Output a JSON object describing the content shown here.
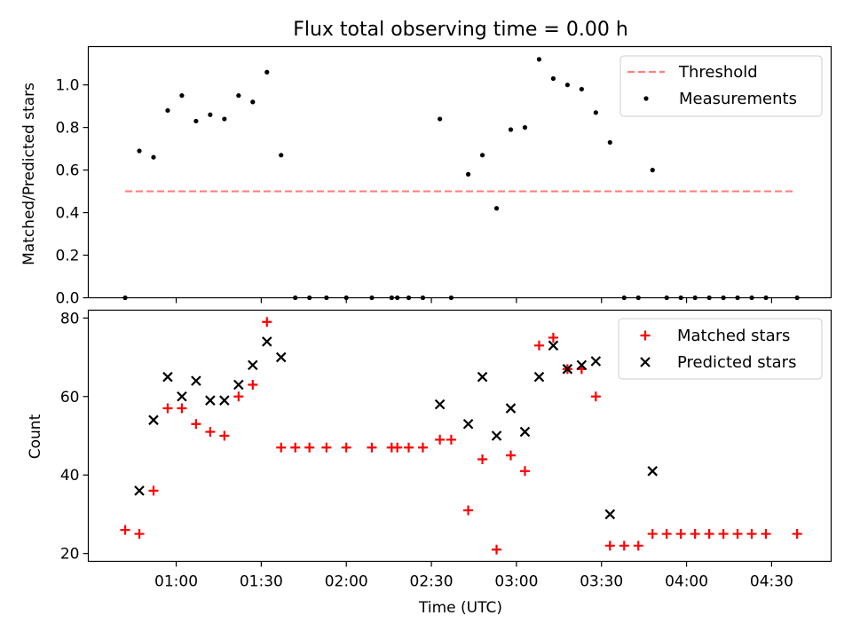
{
  "chart_data": [
    {
      "type": "scatter",
      "title": "Flux total observing time = 0.00 h",
      "xlabel": "",
      "ylabel": "Matched/Predicted stars",
      "xlim": [
        "00:29",
        "04:51"
      ],
      "ylim": [
        0,
        1.18
      ],
      "yticks": [
        "0.0",
        "0.2",
        "0.4",
        "0.6",
        "0.8",
        "1.0"
      ],
      "grid": false,
      "legend": "top-right",
      "threshold": {
        "name": "Threshold",
        "y": 0.5,
        "x_from": "00:42",
        "x_to": "04:38",
        "color": "#ff7f7f",
        "style": "dashed"
      },
      "series": [
        {
          "name": "Measurements",
          "color": "#000000",
          "marker": "dot",
          "points": [
            [
              "00:42",
              0.0
            ],
            [
              "00:47",
              0.69
            ],
            [
              "00:52",
              0.66
            ],
            [
              "00:57",
              0.88
            ],
            [
              "01:02",
              0.95
            ],
            [
              "01:07",
              0.83
            ],
            [
              "01:12",
              0.86
            ],
            [
              "01:17",
              0.84
            ],
            [
              "01:22",
              0.95
            ],
            [
              "01:27",
              0.92
            ],
            [
              "01:32",
              1.06
            ],
            [
              "01:37",
              0.67
            ],
            [
              "01:42",
              0.0
            ],
            [
              "01:47",
              0.0
            ],
            [
              "01:53",
              0.0
            ],
            [
              "02:00",
              0.0
            ],
            [
              "02:09",
              0.0
            ],
            [
              "02:16",
              0.0
            ],
            [
              "02:18",
              0.0
            ],
            [
              "02:22",
              0.0
            ],
            [
              "02:27",
              0.0
            ],
            [
              "02:33",
              0.84
            ],
            [
              "02:37",
              0.0
            ],
            [
              "02:43",
              0.58
            ],
            [
              "02:48",
              0.67
            ],
            [
              "02:53",
              0.42
            ],
            [
              "02:58",
              0.79
            ],
            [
              "03:03",
              0.8
            ],
            [
              "03:08",
              1.12
            ],
            [
              "03:13",
              1.03
            ],
            [
              "03:18",
              1.0
            ],
            [
              "03:23",
              0.98
            ],
            [
              "03:28",
              0.87
            ],
            [
              "03:33",
              0.73
            ],
            [
              "03:38",
              0.0
            ],
            [
              "03:43",
              0.0
            ],
            [
              "03:48",
              0.6
            ],
            [
              "03:53",
              0.0
            ],
            [
              "03:58",
              0.0
            ],
            [
              "04:03",
              0.0
            ],
            [
              "04:08",
              0.0
            ],
            [
              "04:13",
              0.0
            ],
            [
              "04:18",
              0.0
            ],
            [
              "04:23",
              0.0
            ],
            [
              "04:28",
              0.0
            ],
            [
              "04:39",
              0.0
            ]
          ]
        }
      ]
    },
    {
      "type": "scatter",
      "title": "",
      "xlabel": "Time (UTC)",
      "ylabel": "Count",
      "xlim": [
        "00:29",
        "04:51"
      ],
      "ylim": [
        18,
        82
      ],
      "xticks": [
        "01:00",
        "01:30",
        "02:00",
        "02:30",
        "03:00",
        "03:30",
        "04:00",
        "04:30"
      ],
      "yticks": [
        "20",
        "40",
        "60",
        "80"
      ],
      "grid": false,
      "legend": "top-right",
      "series": [
        {
          "name": "Matched stars",
          "color": "#ff0000",
          "marker": "plus",
          "points": [
            [
              "00:42",
              26
            ],
            [
              "00:47",
              25
            ],
            [
              "00:52",
              36
            ],
            [
              "00:57",
              57
            ],
            [
              "01:02",
              57
            ],
            [
              "01:07",
              53
            ],
            [
              "01:12",
              51
            ],
            [
              "01:17",
              50
            ],
            [
              "01:22",
              60
            ],
            [
              "01:27",
              63
            ],
            [
              "01:32",
              79
            ],
            [
              "01:37",
              47
            ],
            [
              "01:42",
              47
            ],
            [
              "01:47",
              47
            ],
            [
              "01:53",
              47
            ],
            [
              "02:00",
              47
            ],
            [
              "02:09",
              47
            ],
            [
              "02:16",
              47
            ],
            [
              "02:18",
              47
            ],
            [
              "02:22",
              47
            ],
            [
              "02:27",
              47
            ],
            [
              "02:33",
              49
            ],
            [
              "02:37",
              49
            ],
            [
              "02:43",
              31
            ],
            [
              "02:48",
              44
            ],
            [
              "02:53",
              21
            ],
            [
              "02:58",
              45
            ],
            [
              "03:03",
              41
            ],
            [
              "03:08",
              73
            ],
            [
              "03:13",
              75
            ],
            [
              "03:18",
              67
            ],
            [
              "03:23",
              67
            ],
            [
              "03:28",
              60
            ],
            [
              "03:33",
              22
            ],
            [
              "03:38",
              22
            ],
            [
              "03:43",
              22
            ],
            [
              "03:48",
              25
            ],
            [
              "03:53",
              25
            ],
            [
              "03:58",
              25
            ],
            [
              "04:03",
              25
            ],
            [
              "04:08",
              25
            ],
            [
              "04:13",
              25
            ],
            [
              "04:18",
              25
            ],
            [
              "04:23",
              25
            ],
            [
              "04:28",
              25
            ],
            [
              "04:39",
              25
            ]
          ]
        },
        {
          "name": "Predicted stars",
          "color": "#000000",
          "marker": "x",
          "points": [
            [
              "00:47",
              36
            ],
            [
              "00:52",
              54
            ],
            [
              "00:57",
              65
            ],
            [
              "01:02",
              60
            ],
            [
              "01:07",
              64
            ],
            [
              "01:12",
              59
            ],
            [
              "01:17",
              59
            ],
            [
              "01:22",
              63
            ],
            [
              "01:27",
              68
            ],
            [
              "01:32",
              74
            ],
            [
              "01:37",
              70
            ],
            [
              "02:33",
              58
            ],
            [
              "02:43",
              53
            ],
            [
              "02:48",
              65
            ],
            [
              "02:53",
              50
            ],
            [
              "02:58",
              57
            ],
            [
              "03:03",
              51
            ],
            [
              "03:08",
              65
            ],
            [
              "03:13",
              73
            ],
            [
              "03:18",
              67
            ],
            [
              "03:23",
              68
            ],
            [
              "03:28",
              69
            ],
            [
              "03:33",
              30
            ],
            [
              "03:48",
              41
            ]
          ]
        }
      ]
    }
  ]
}
